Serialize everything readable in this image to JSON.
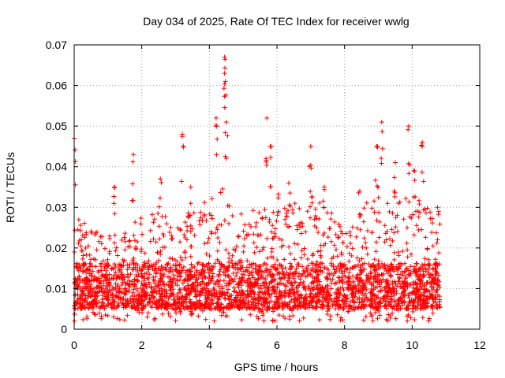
{
  "chart_data": {
    "type": "scatter",
    "title": "Day 034 of 2025, Rate Of TEC Index for receiver wwlg",
    "xlabel": "GPS time / hours",
    "ylabel": "ROTI / TECUs",
    "xlim": [
      0,
      12
    ],
    "ylim": [
      0,
      0.07
    ],
    "xticks": [
      0,
      2,
      4,
      6,
      8,
      10,
      12
    ],
    "yticks": [
      0,
      0.01,
      0.02,
      0.03,
      0.04,
      0.05,
      0.06,
      0.07
    ],
    "xtick_labels": [
      "0",
      "2",
      "4",
      "6",
      "8",
      "10",
      "12"
    ],
    "ytick_labels": [
      "0",
      "0.01",
      "0.02",
      "0.03",
      "0.04",
      "0.05",
      "0.06",
      "0.07"
    ],
    "grid": true,
    "marker": "+",
    "series": [
      {
        "name": "ROTI",
        "color": "#ff0000",
        "x_range": [
          0.0,
          10.85
        ],
        "typical_band": [
          0.005,
          0.02
        ],
        "notable_points": [
          {
            "x": 0.0,
            "y": 0.047
          },
          {
            "x": 1.2,
            "y": 0.035
          },
          {
            "x": 1.75,
            "y": 0.043
          },
          {
            "x": 2.55,
            "y": 0.037
          },
          {
            "x": 3.2,
            "y": 0.048
          },
          {
            "x": 3.45,
            "y": 0.035
          },
          {
            "x": 4.2,
            "y": 0.052
          },
          {
            "x": 4.45,
            "y": 0.067
          },
          {
            "x": 4.45,
            "y": 0.063
          },
          {
            "x": 4.5,
            "y": 0.051
          },
          {
            "x": 5.7,
            "y": 0.052
          },
          {
            "x": 5.8,
            "y": 0.045
          },
          {
            "x": 6.35,
            "y": 0.036
          },
          {
            "x": 7.0,
            "y": 0.045
          },
          {
            "x": 7.4,
            "y": 0.035
          },
          {
            "x": 8.45,
            "y": 0.034
          },
          {
            "x": 8.95,
            "y": 0.045
          },
          {
            "x": 9.1,
            "y": 0.051
          },
          {
            "x": 9.5,
            "y": 0.041
          },
          {
            "x": 9.9,
            "y": 0.05
          },
          {
            "x": 10.05,
            "y": 0.039
          },
          {
            "x": 10.3,
            "y": 0.046
          },
          {
            "x": 10.75,
            "y": 0.03
          }
        ],
        "envelope_upper": [
          {
            "x": 0.0,
            "y": 0.028
          },
          {
            "x": 0.5,
            "y": 0.025
          },
          {
            "x": 1.0,
            "y": 0.023
          },
          {
            "x": 1.5,
            "y": 0.024
          },
          {
            "x": 2.0,
            "y": 0.028
          },
          {
            "x": 2.5,
            "y": 0.03
          },
          {
            "x": 3.0,
            "y": 0.025
          },
          {
            "x": 3.5,
            "y": 0.03
          },
          {
            "x": 4.0,
            "y": 0.033
          },
          {
            "x": 4.5,
            "y": 0.035
          },
          {
            "x": 5.0,
            "y": 0.028
          },
          {
            "x": 5.5,
            "y": 0.031
          },
          {
            "x": 6.0,
            "y": 0.034
          },
          {
            "x": 6.5,
            "y": 0.032
          },
          {
            "x": 7.0,
            "y": 0.034
          },
          {
            "x": 7.5,
            "y": 0.03
          },
          {
            "x": 8.0,
            "y": 0.024
          },
          {
            "x": 8.5,
            "y": 0.03
          },
          {
            "x": 9.0,
            "y": 0.036
          },
          {
            "x": 9.5,
            "y": 0.031
          },
          {
            "x": 10.0,
            "y": 0.034
          },
          {
            "x": 10.5,
            "y": 0.03
          },
          {
            "x": 10.85,
            "y": 0.027
          }
        ]
      }
    ]
  }
}
